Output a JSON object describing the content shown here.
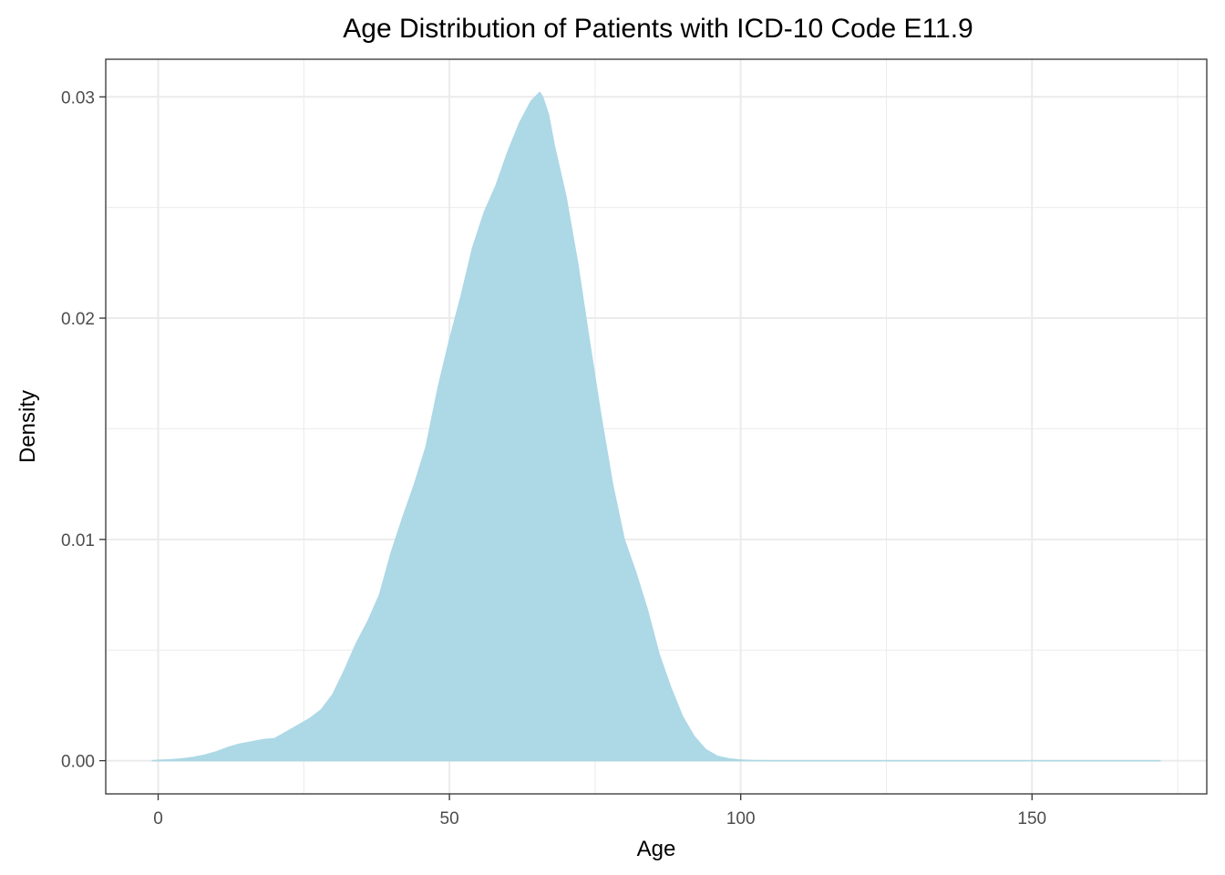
{
  "chart_data": {
    "type": "area",
    "title": "Age Distribution of Patients with ICD-10 Code E11.9",
    "xlabel": "Age",
    "ylabel": "Density",
    "xlim": [
      -9,
      180
    ],
    "ylim": [
      -0.0015,
      0.0317
    ],
    "x_ticks": [
      0,
      50,
      100,
      150
    ],
    "x_tick_labels": [
      "0",
      "50",
      "100",
      "150"
    ],
    "y_ticks": [
      0.0,
      0.01,
      0.02,
      0.03
    ],
    "y_tick_labels": [
      "0.00",
      "0.01",
      "0.02",
      "0.03"
    ],
    "x_minor_ticks": [
      25,
      75,
      125,
      175
    ],
    "y_minor_ticks": [
      0.005,
      0.015,
      0.025
    ],
    "grid": true,
    "legend": "none",
    "colors": {
      "fill": "#add8e6",
      "grid": "#ebebeb",
      "panel_border": "#333333"
    },
    "series": [
      {
        "x": [
          -1,
          0,
          2,
          4,
          6,
          8,
          10,
          12,
          14,
          16,
          18,
          20,
          22,
          24,
          26,
          28,
          30,
          32,
          34,
          36,
          38,
          40,
          42,
          44,
          46,
          48,
          50,
          52,
          54,
          56,
          58,
          60,
          62,
          64,
          65.5,
          66,
          67,
          68,
          70,
          72,
          74,
          76,
          78,
          80,
          82,
          84,
          86,
          88,
          90,
          92,
          94,
          96,
          98,
          100,
          102,
          105,
          110,
          120,
          130,
          140,
          150,
          160,
          172
        ],
        "y": [
          0.0,
          2e-05,
          4e-05,
          8e-05,
          0.00015,
          0.00025,
          0.0004,
          0.0006,
          0.00075,
          0.00085,
          0.00095,
          0.001,
          0.0013,
          0.0016,
          0.0019,
          0.0023,
          0.003,
          0.0041,
          0.0053,
          0.0063,
          0.0075,
          0.0094,
          0.011,
          0.0125,
          0.0142,
          0.0168,
          0.019,
          0.021,
          0.0232,
          0.0248,
          0.026,
          0.0275,
          0.0288,
          0.0298,
          0.0302,
          0.03,
          0.0292,
          0.0278,
          0.0255,
          0.0225,
          0.019,
          0.0156,
          0.0125,
          0.01,
          0.0085,
          0.0068,
          0.0048,
          0.0033,
          0.002,
          0.0011,
          0.0005,
          0.0002,
          8e-05,
          3e-05,
          1e-05,
          0.0,
          0.0,
          0.0,
          0.0,
          0.0,
          0.0,
          0.0,
          0.0
        ]
      }
    ]
  }
}
